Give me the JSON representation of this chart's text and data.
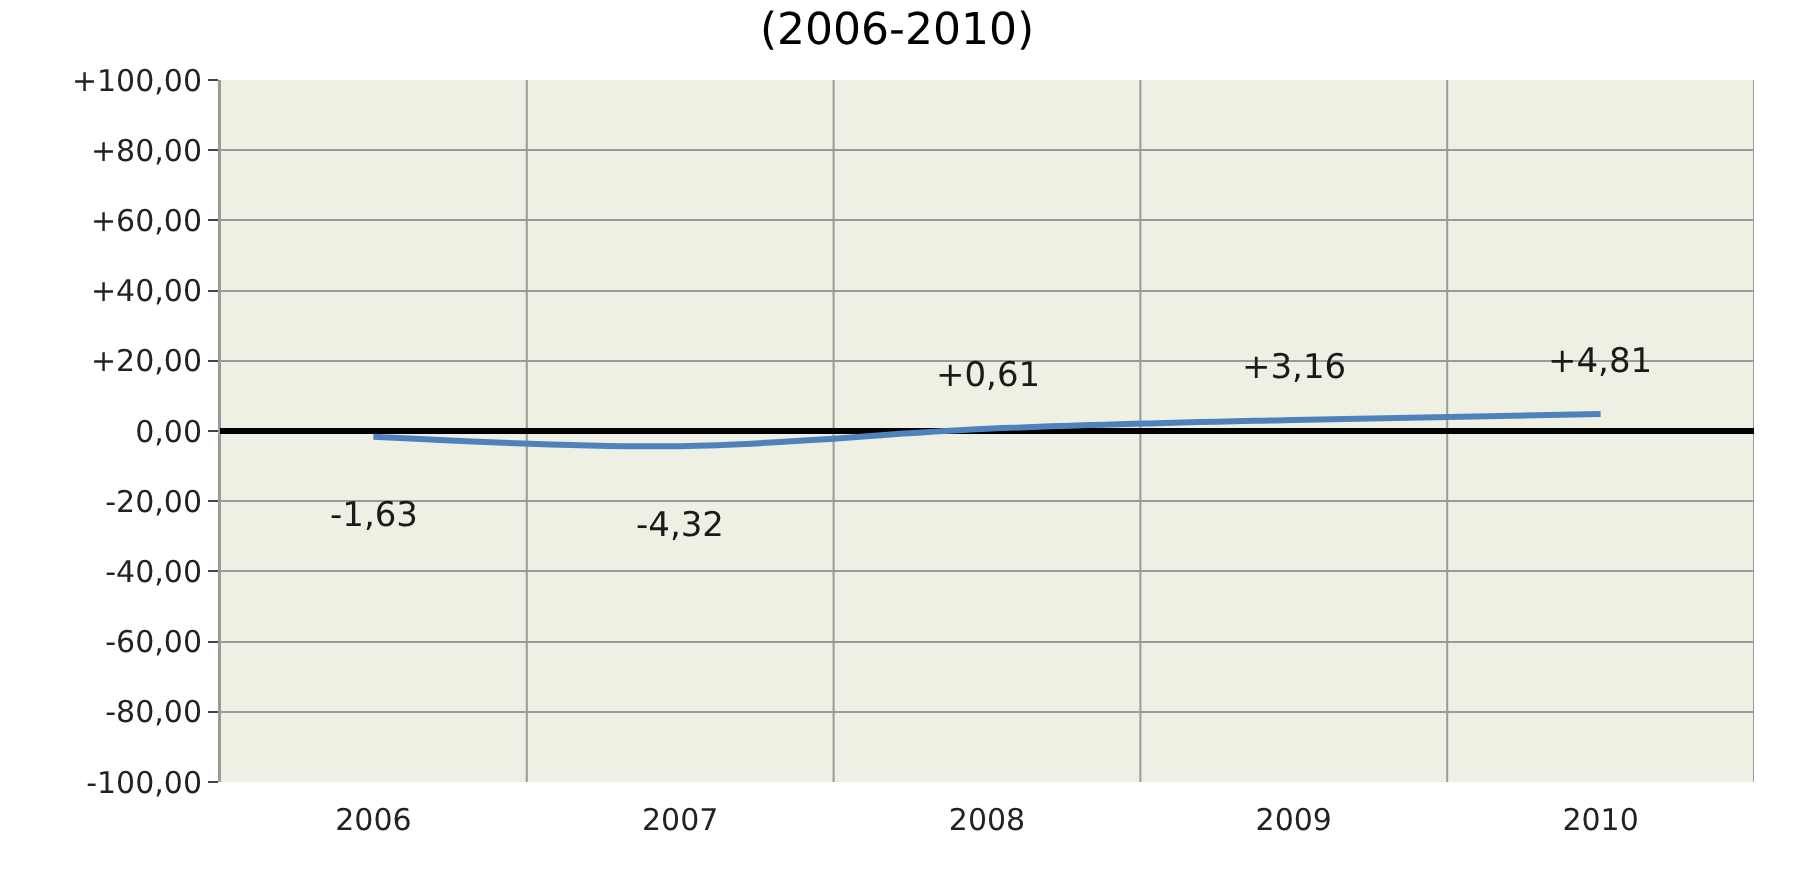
{
  "chart_data": {
    "type": "line",
    "title": "(2006-2010)",
    "categories": [
      "2006",
      "2007",
      "2008",
      "2009",
      "2010"
    ],
    "series": [
      {
        "color": "#4f81bd",
        "values": [
          -1.63,
          -4.32,
          0.61,
          3.16,
          4.81
        ],
        "value_labels": [
          "-1,63",
          "-4,32",
          "+0,61",
          "+3,16",
          "+4,81"
        ]
      }
    ],
    "ylim": [
      -100,
      100
    ],
    "yticks": [
      {
        "value": -100,
        "label": "-100,00"
      },
      {
        "value": -80,
        "label": "-80,00"
      },
      {
        "value": -60,
        "label": "-60,00"
      },
      {
        "value": -40,
        "label": "-40,00"
      },
      {
        "value": -20,
        "label": "-20,00"
      },
      {
        "value": 0,
        "label": "0,00"
      },
      {
        "value": 20,
        "label": "+20,00"
      },
      {
        "value": 40,
        "label": "+40,00"
      },
      {
        "value": 60,
        "label": "+60,00"
      },
      {
        "value": 80,
        "label": "+80,00"
      },
      {
        "value": 100,
        "label": "+100,00"
      }
    ],
    "grid": true,
    "marker": "none",
    "line_style": "solid"
  }
}
